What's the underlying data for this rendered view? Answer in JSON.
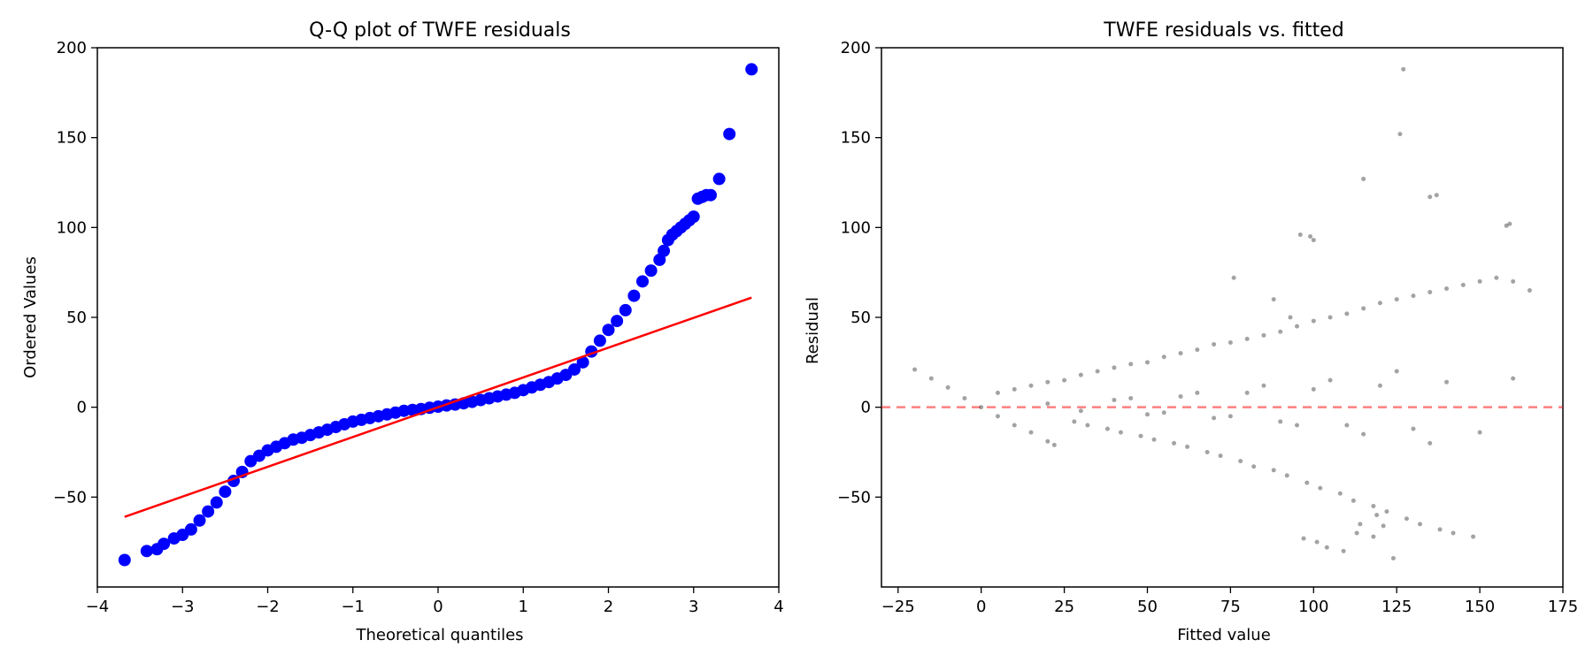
{
  "chart_data": [
    {
      "type": "scatter",
      "title": "Q-Q plot of TWFE residuals",
      "xlabel": "Theoretical quantiles",
      "ylabel": "Ordered Values",
      "xlim": [
        -4,
        4
      ],
      "ylim": [
        -100,
        200
      ],
      "x_ticks": [
        "−4",
        "−3",
        "−2",
        "−1",
        "0",
        "1",
        "2",
        "3",
        "4"
      ],
      "x_tick_values": [
        -4,
        -3,
        -2,
        -1,
        0,
        1,
        2,
        3,
        4
      ],
      "y_ticks": [
        "−50",
        "0",
        "50",
        "100",
        "150",
        "200"
      ],
      "y_tick_values": [
        -50,
        0,
        50,
        100,
        150,
        200
      ],
      "grid": false,
      "colors": {
        "points": "#0000ff",
        "fit_line": "#ff0000"
      },
      "fit_line": {
        "x": [
          -3.68,
          3.68
        ],
        "y": [
          -61,
          61
        ]
      },
      "series": [
        {
          "x": [
            -3.68,
            -3.42,
            -3.3,
            -3.22,
            -3.1,
            -3.0,
            -2.9,
            -2.8,
            -2.7,
            -2.6,
            -2.5,
            -2.4,
            -2.3,
            -2.2,
            -2.1,
            -2.0,
            -1.9,
            -1.8,
            -1.7,
            -1.6,
            -1.5,
            -1.4,
            -1.3,
            -1.2,
            -1.1,
            -1.0,
            -0.9,
            -0.8,
            -0.7,
            -0.6,
            -0.5,
            -0.4,
            -0.3,
            -0.2,
            -0.1,
            0.0,
            0.1,
            0.2,
            0.3,
            0.4,
            0.5,
            0.6,
            0.7,
            0.8,
            0.9,
            1.0,
            1.1,
            1.2,
            1.3,
            1.4,
            1.5,
            1.6,
            1.7,
            1.8,
            1.9,
            2.0,
            2.1,
            2.2,
            2.3,
            2.4,
            2.5,
            2.6,
            2.65,
            2.7,
            2.75,
            2.8,
            2.85,
            2.9,
            2.95,
            3.0,
            3.05,
            3.1,
            3.15,
            3.2,
            3.3,
            3.42,
            3.68
          ],
          "y": [
            -85,
            -80,
            -79,
            -76,
            -73,
            -71,
            -68,
            -63,
            -58,
            -53,
            -47,
            -41,
            -36,
            -30,
            -27,
            -24,
            -22,
            -20,
            -18,
            -17,
            -15.5,
            -14,
            -12.5,
            -11,
            -9.5,
            -8,
            -7,
            -6,
            -5,
            -4,
            -3,
            -2,
            -1.5,
            -1,
            -0.3,
            0.3,
            1,
            1.5,
            2.2,
            3,
            4,
            5,
            6,
            7,
            8,
            9.5,
            11,
            12.5,
            14,
            16,
            18,
            21,
            25,
            31,
            37,
            43,
            48,
            54,
            62,
            70,
            76,
            82,
            87,
            93,
            96,
            98,
            100,
            102,
            104,
            106,
            116,
            117,
            118,
            118,
            127,
            152,
            188
          ]
        }
      ]
    },
    {
      "type": "scatter",
      "title": "TWFE residuals vs. fitted",
      "xlabel": "Fitted value",
      "ylabel": "Residual",
      "xlim": [
        -30,
        175
      ],
      "ylim": [
        -100,
        200
      ],
      "x_ticks": [
        "−25",
        "0",
        "25",
        "50",
        "75",
        "100",
        "125",
        "150",
        "175"
      ],
      "x_tick_values": [
        -25,
        0,
        25,
        50,
        75,
        100,
        125,
        150,
        175
      ],
      "y_ticks": [
        "−50",
        "0",
        "50",
        "100",
        "150",
        "200"
      ],
      "y_tick_values": [
        -50,
        0,
        50,
        100,
        150,
        200
      ],
      "grid": false,
      "colors": {
        "points": "#333333",
        "zero_line": "#ff0000"
      },
      "reference_line": {
        "y": 0,
        "style": "dashed"
      },
      "series": [
        {
          "x": [
            -20,
            -15,
            -10,
            -5,
            0,
            5,
            10,
            15,
            20,
            22,
            5,
            10,
            15,
            20,
            25,
            30,
            35,
            40,
            45,
            50,
            55,
            60,
            65,
            70,
            75,
            80,
            85,
            90,
            95,
            100,
            105,
            110,
            115,
            120,
            125,
            130,
            135,
            140,
            145,
            150,
            155,
            160,
            165,
            28,
            32,
            38,
            42,
            48,
            52,
            58,
            62,
            68,
            72,
            78,
            82,
            88,
            92,
            98,
            102,
            108,
            112,
            118,
            122,
            128,
            132,
            138,
            142,
            148,
            45,
            55,
            65,
            75,
            85,
            95,
            105,
            115,
            125,
            135,
            20,
            30,
            40,
            50,
            60,
            70,
            80,
            90,
            100,
            110,
            120,
            130,
            140,
            150,
            160,
            127,
            126,
            115,
            135,
            137,
            158,
            159,
            96,
            99,
            100,
            101,
            104,
            109,
            113,
            119,
            124,
            118,
            114,
            121,
            88,
            76,
            93,
            97
          ],
          "y": [
            21,
            16,
            11,
            5,
            0,
            -5,
            -10,
            -14,
            -19,
            -21,
            8,
            10,
            12,
            14,
            15,
            18,
            20,
            22,
            24,
            25,
            28,
            30,
            32,
            35,
            36,
            38,
            40,
            42,
            45,
            48,
            50,
            52,
            55,
            58,
            60,
            62,
            64,
            66,
            68,
            70,
            72,
            70,
            65,
            -8,
            -10,
            -12,
            -14,
            -16,
            -18,
            -20,
            -22,
            -25,
            -27,
            -30,
            -33,
            -35,
            -38,
            -42,
            -45,
            -48,
            -52,
            -55,
            -58,
            -62,
            -65,
            -68,
            -70,
            -72,
            5,
            -3,
            8,
            -5,
            12,
            -10,
            15,
            -15,
            20,
            -20,
            2,
            -2,
            4,
            -4,
            6,
            -6,
            8,
            -8,
            10,
            -10,
            12,
            -12,
            14,
            -14,
            16,
            188,
            152,
            127,
            117,
            118,
            101,
            102,
            96,
            95,
            93,
            -75,
            -78,
            -80,
            -70,
            -60,
            -84,
            -72,
            -65,
            -66,
            60,
            72,
            50,
            -73
          ]
        }
      ]
    }
  ]
}
